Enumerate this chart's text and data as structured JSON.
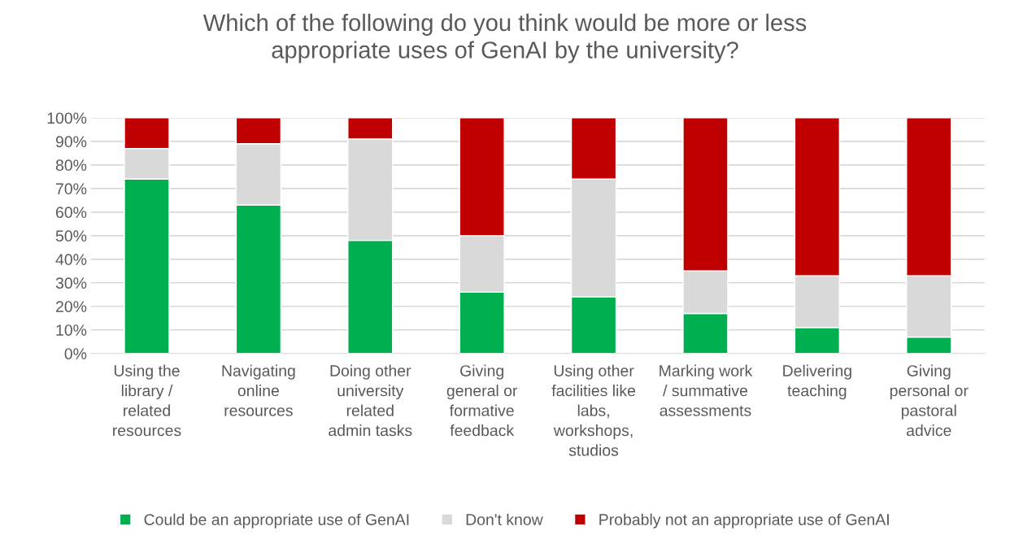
{
  "chart_data": {
    "type": "bar",
    "title": "Which of the following do you think would be more or less\nappropriate uses of GenAI by the university?",
    "categories": [
      "Using the\nlibrary /\nrelated\nresources",
      "Navigating\nonline\nresources",
      "Doing other\nuniversity\nrelated\nadmin tasks",
      "Giving\ngeneral or\nformative\nfeedback",
      "Using other\nfacilities like\nlabs,\nworkshops,\nstudios",
      "Marking work\n/ summative\nassessments",
      "Delivering\nteaching",
      "Giving\npersonal or\npastoral\nadvice"
    ],
    "series": [
      {
        "name": "Could be an appropriate use of GenAI",
        "color": "#00b050",
        "values": [
          74,
          63,
          48,
          26,
          24,
          17,
          11,
          7
        ]
      },
      {
        "name": "Don't know",
        "color": "#d9d9d9",
        "values": [
          13,
          26,
          43,
          24,
          50,
          18,
          22,
          26
        ]
      },
      {
        "name": "Probably not an appropriate use of GenAI",
        "color": "#c00000",
        "values": [
          13,
          11,
          9,
          50,
          26,
          65,
          67,
          67
        ]
      }
    ],
    "stacked": true,
    "ylim": [
      0,
      100
    ],
    "yticks": [
      {
        "value": 0,
        "label": "0%"
      },
      {
        "value": 10,
        "label": "10%"
      },
      {
        "value": 20,
        "label": "20%"
      },
      {
        "value": 30,
        "label": "30%"
      },
      {
        "value": 40,
        "label": "40%"
      },
      {
        "value": 50,
        "label": "50%"
      },
      {
        "value": 60,
        "label": "60%"
      },
      {
        "value": 70,
        "label": "70%"
      },
      {
        "value": 80,
        "label": "80%"
      },
      {
        "value": 90,
        "label": "90%"
      },
      {
        "value": 100,
        "label": "100%"
      }
    ],
    "grid": "y",
    "legend": "bottom"
  }
}
